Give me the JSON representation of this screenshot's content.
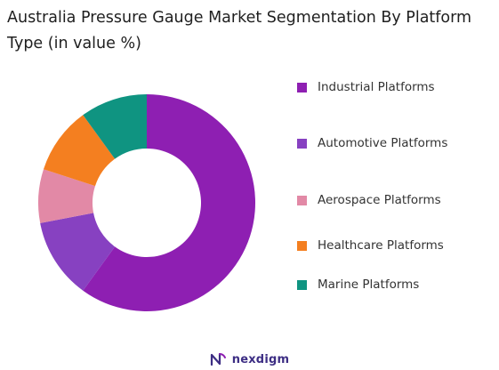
{
  "chart_data": {
    "type": "pie",
    "title": "Australia Pressure Gauge Market Segmentation By Platform Type (in value %)",
    "categories": [
      "Industrial Platforms",
      "Automotive Platforms",
      "Aerospace Platforms",
      "Healthcare Platforms",
      "Marine Platforms"
    ],
    "values": [
      60,
      12,
      8,
      10,
      10
    ],
    "unit": "%",
    "donut": true,
    "legend_position": "right",
    "colors": [
      "#8e1fb2",
      "#8741c1",
      "#e289a6",
      "#f47f20",
      "#0f9481"
    ]
  },
  "brand": {
    "name": "nexdigm",
    "logo_icon": "nexdigm-logo-icon"
  }
}
